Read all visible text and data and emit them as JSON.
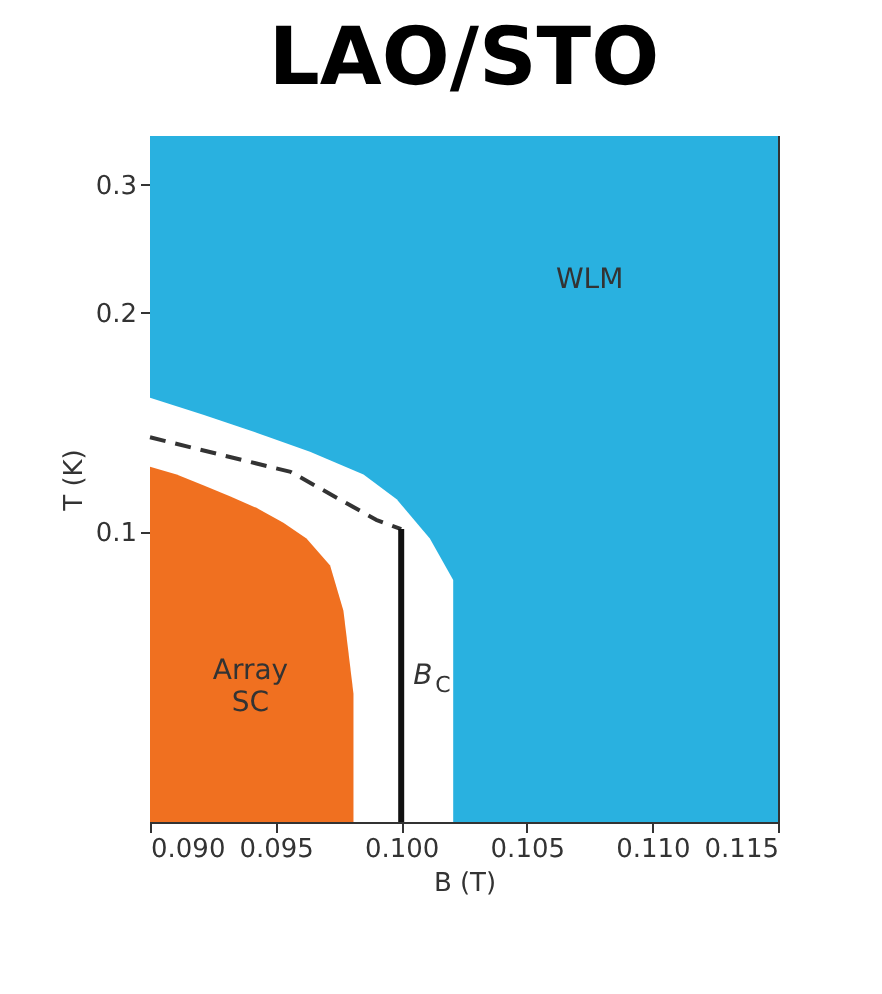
{
  "chart_data": {
    "type": "area",
    "title": "LAO/STO",
    "xlabel": "B (T)",
    "ylabel": "T (K)",
    "series": [
      {
        "type": "area",
        "color": "#ffffff",
        "x": [
          0.09,
          0.09212,
          0.09424,
          0.09637,
          0.0985,
          0.09982,
          0.10114,
          0.10207,
          0.10207
        ],
        "values": [
          0.153,
          0.145,
          0.137,
          0.129,
          0.12,
          0.111,
          0.098,
          0.086,
          0.04
        ]
      },
      {
        "type": "area",
        "name": "Array SC",
        "color": "#f07020",
        "x": [
          0.09,
          0.09106,
          0.09212,
          0.09318,
          0.09424,
          0.09531,
          0.09623,
          0.09717,
          0.0977,
          0.0981,
          0.0981
        ],
        "values": [
          0.123,
          0.12,
          0.116,
          0.112,
          0.108,
          0.103,
          0.098,
          0.09,
          0.078,
          0.06,
          0.04
        ]
      },
      {
        "type": "line",
        "color": "#333333",
        "line_style": "dashed",
        "x": [
          0.09,
          0.0956,
          0.099,
          0.1
        ],
        "values": [
          0.135,
          0.121,
          0.104,
          0.101
        ]
      },
      {
        "type": "line",
        "name": "B$_{C}$",
        "color": "#111111",
        "line_style": "solid",
        "x": [
          0.1,
          0.1
        ],
        "values": [
          0.101,
          0.04
        ]
      }
    ],
    "bands": [
      {
        "axis": "y",
        "from": 0.04,
        "to": 0.35,
        "label": "WLM",
        "color": "#29b1e0"
      }
    ],
    "log": "y",
    "grid": false,
    "xlim": [
      0.09,
      0.115
    ],
    "xticks": [
      {
        "value": 0.09,
        "label": "0.090"
      },
      0.095,
      {
        "value": 0.1,
        "label": "0.100"
      },
      0.105,
      {
        "value": 0.11,
        "label": "0.110"
      },
      0.115
    ],
    "ylim": [
      0.04,
      0.35
    ],
    "yticks": [
      0.1,
      0.2,
      0.3
    ]
  }
}
